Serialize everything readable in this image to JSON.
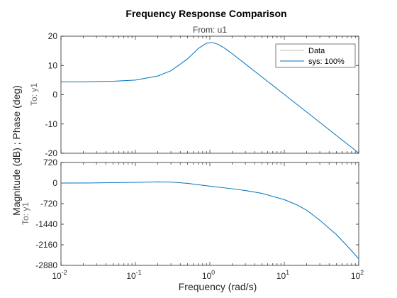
{
  "chart_data": {
    "type": "line",
    "title": "Frequency Response Comparison",
    "subtitle": "From: u1",
    "xlabel": "Frequency  (rad/s)",
    "ylabel": "Magnitude (dB) ; Phase (deg)",
    "xscale": "log",
    "xlim": [
      0.01,
      100
    ],
    "x_ticks": [
      {
        "base": "10",
        "exp": "-2",
        "value": 0.01
      },
      {
        "base": "10",
        "exp": "-1",
        "value": 0.1
      },
      {
        "base": "10",
        "exp": "0",
        "value": 1
      },
      {
        "base": "10",
        "exp": "1",
        "value": 10
      },
      {
        "base": "10",
        "exp": "2",
        "value": 100
      }
    ],
    "legend": {
      "placement": "top-right",
      "entries": [
        {
          "name": "Data",
          "color": "#bfbfbf"
        },
        {
          "name": "sys: 100%",
          "color": "#0072bd"
        }
      ]
    },
    "panels": [
      {
        "output_label": "To: y1",
        "ylim": [
          -20,
          20
        ],
        "yticks": [
          "20",
          "10",
          "0",
          "-10",
          "-20"
        ],
        "ytick_values": [
          20,
          10,
          0,
          -10,
          -20
        ],
        "series": [
          {
            "name": "sys: 100%",
            "color": "#0072bd",
            "x": [
              0.01,
              0.02,
              0.05,
              0.1,
              0.2,
              0.3,
              0.5,
              0.7,
              0.9,
              1.1,
              1.3,
              1.6,
              2,
              3,
              5,
              10,
              20,
              50,
              100
            ],
            "y": [
              4.4,
              4.4,
              4.6,
              5.0,
              6.4,
              8.2,
              12.2,
              15.8,
              17.6,
              17.8,
              17.2,
              15.8,
              14.0,
              10.5,
              6.1,
              0.1,
              -5.9,
              -13.9,
              -19.9
            ]
          }
        ]
      },
      {
        "output_label": "To: y1",
        "ylim": [
          -2880,
          720
        ],
        "yticks": [
          "720",
          "0",
          "-720",
          "-1440",
          "-2160",
          "-2880"
        ],
        "ytick_values": [
          720,
          0,
          -720,
          -1440,
          -2160,
          -2880
        ],
        "series": [
          {
            "name": "sys: 100%",
            "color": "#0072bd",
            "x": [
              0.01,
              0.03,
              0.1,
              0.2,
              0.3,
              0.5,
              0.7,
              1,
              2,
              3,
              5,
              10,
              15,
              20,
              30,
              50,
              70,
              100
            ],
            "y": [
              0,
              5,
              25,
              40,
              35,
              -10,
              -60,
              -110,
              -200,
              -260,
              -360,
              -580,
              -770,
              -950,
              -1300,
              -1800,
              -2200,
              -2650
            ]
          }
        ]
      }
    ]
  }
}
